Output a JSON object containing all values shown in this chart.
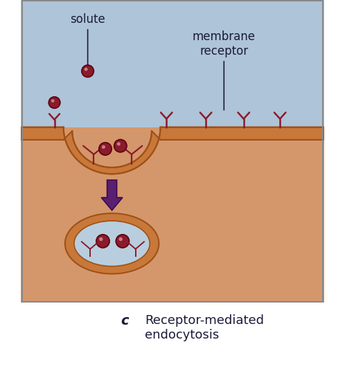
{
  "fig_width": 4.98,
  "fig_height": 5.33,
  "dpi": 100,
  "bg_color": "#ffffff",
  "sky_color": "#aec4d8",
  "cell_color": "#d4976b",
  "membrane_color": "#c87838",
  "membrane_edge_color": "#a05018",
  "vesicle_inner_color": "#b8cede",
  "solute_color": "#8b1a2a",
  "solute_edge_color": "#5a0010",
  "receptor_color": "#8b1a2a",
  "arrow_color": "#5a2070",
  "label_color": "#1a1a3a",
  "border_color": "#888888",
  "title_label": "c",
  "title_text": "Receptor-mediated\nendocytosis",
  "label_solute": "solute",
  "label_receptor": "membrane\nreceptor"
}
